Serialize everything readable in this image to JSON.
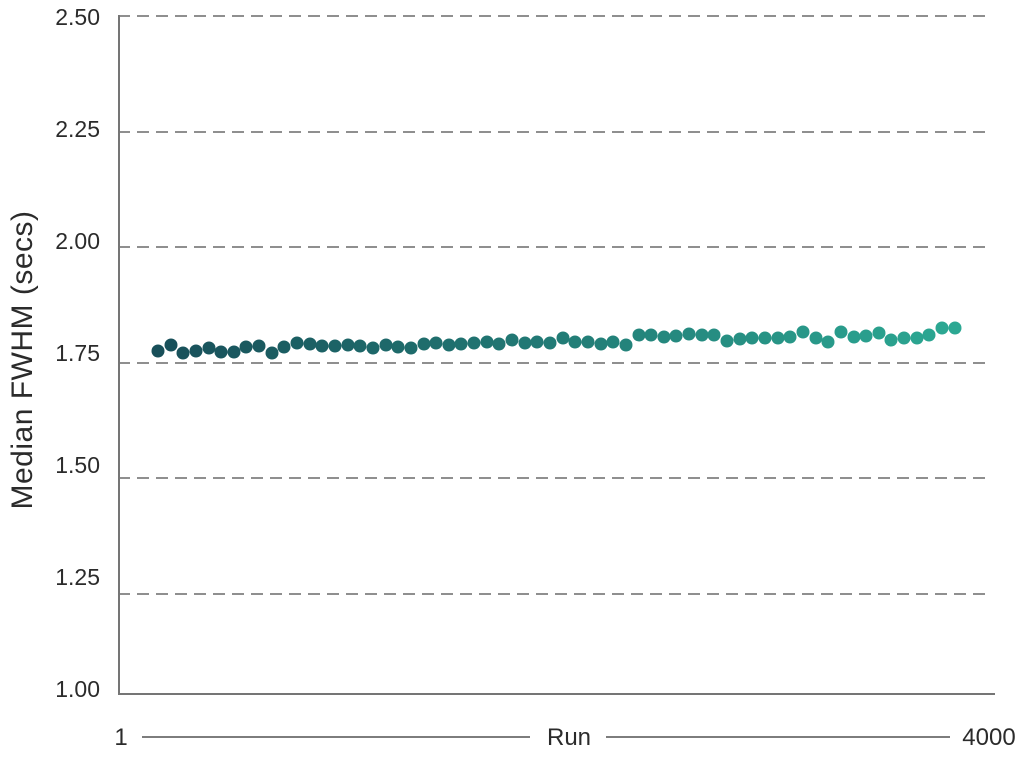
{
  "colors": {
    "dot_gradient_start": "#184F59",
    "dot_gradient_end": "#2CA893",
    "gridline": "#8F8F8F",
    "axis": "#757575",
    "text": "#2B2B2B"
  },
  "chart_data": {
    "type": "scatter",
    "title": "",
    "xlabel": "Run",
    "ylabel": "Median FWHM (secs)",
    "x_axis_endpoint_labels": [
      "1",
      "4000"
    ],
    "xlim": [
      1,
      4000
    ],
    "ylim": [
      1.0,
      2.5
    ],
    "y_tick_labels": [
      "2.50",
      "2.25",
      "2.00",
      "1.75",
      "1.50",
      "1.25",
      "1.00"
    ],
    "y_tick_values": [
      2.5,
      2.25,
      2.0,
      1.75,
      1.5,
      1.25,
      1.0
    ],
    "grid": "horizontal-dashed",
    "legend": "none",
    "point_color_encoding": "run order, dark teal to light teal gradient",
    "series": [
      {
        "name": "Median FWHM",
        "x": [
          184,
          242,
          300,
          358,
          416,
          474,
          532,
          590,
          648,
          706,
          764,
          822,
          880,
          938,
          996,
          1054,
          1112,
          1170,
          1228,
          1286,
          1344,
          1402,
          1460,
          1518,
          1576,
          1634,
          1692,
          1750,
          1808,
          1866,
          1924,
          1982,
          2040,
          2098,
          2156,
          2214,
          2272,
          2330,
          2388,
          2446,
          2504,
          2562,
          2620,
          2678,
          2736,
          2794,
          2852,
          2910,
          2968,
          3026,
          3084,
          3142,
          3200,
          3258,
          3316,
          3374,
          3432,
          3490,
          3548,
          3606,
          3664,
          3722,
          3780,
          3838
        ],
        "y": [
          1.754,
          1.768,
          1.75,
          1.754,
          1.761,
          1.752,
          1.752,
          1.763,
          1.765,
          1.75,
          1.763,
          1.772,
          1.77,
          1.765,
          1.765,
          1.768,
          1.765,
          1.761,
          1.768,
          1.763,
          1.761,
          1.77,
          1.772,
          1.768,
          1.77,
          1.772,
          1.774,
          1.77,
          1.779,
          1.772,
          1.774,
          1.772,
          1.783,
          1.774,
          1.774,
          1.77,
          1.774,
          1.768,
          1.79,
          1.79,
          1.786,
          1.788,
          1.792,
          1.79,
          1.79,
          1.777,
          1.781,
          1.783,
          1.783,
          1.783,
          1.786,
          1.797,
          1.783,
          1.774,
          1.797,
          1.786,
          1.788,
          1.795,
          1.779,
          1.783,
          1.783,
          1.79,
          1.806,
          1.806
        ]
      }
    ]
  }
}
